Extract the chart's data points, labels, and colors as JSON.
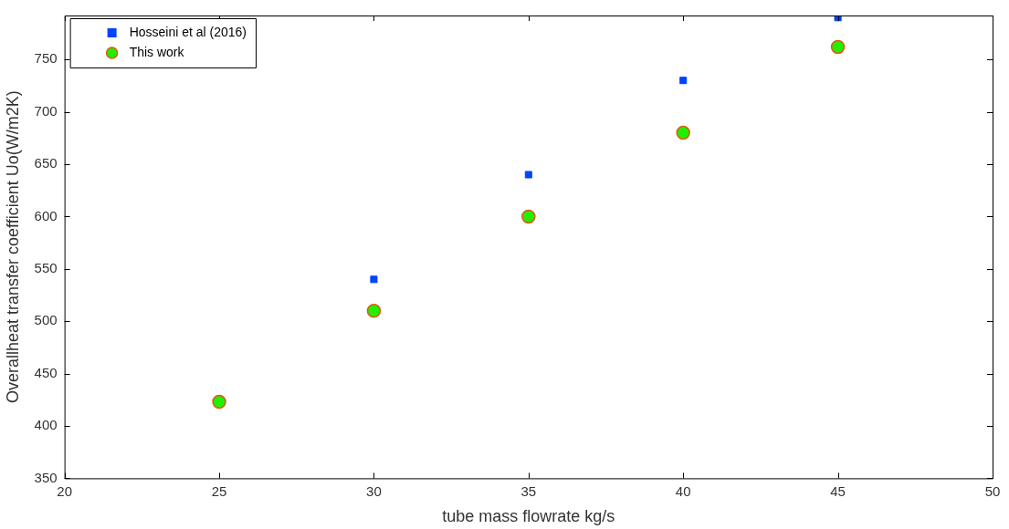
{
  "chart_data": {
    "type": "scatter",
    "xlabel": "tube mass flowrate kg/s",
    "ylabel": "Overallheat transfer coefficient Uo(W/m2K)",
    "x": [
      25,
      30,
      35,
      40,
      45
    ],
    "series": [
      {
        "name": "Hosseini et al (2016)",
        "color": "#0044ff",
        "marker": "square",
        "values": [
          null,
          540,
          640,
          730,
          790
        ]
      },
      {
        "name": "This work",
        "color": "#22ee00",
        "marker": "circle",
        "values": [
          423,
          510,
          600,
          680,
          762
        ]
      }
    ],
    "xlim": [
      20,
      50
    ],
    "ylim": [
      350,
      792
    ],
    "xticks": [
      20,
      25,
      30,
      35,
      40,
      45,
      50
    ],
    "yticks": [
      350,
      400,
      450,
      500,
      550,
      600,
      650,
      700,
      750
    ],
    "grid": false,
    "legend": "top left"
  }
}
